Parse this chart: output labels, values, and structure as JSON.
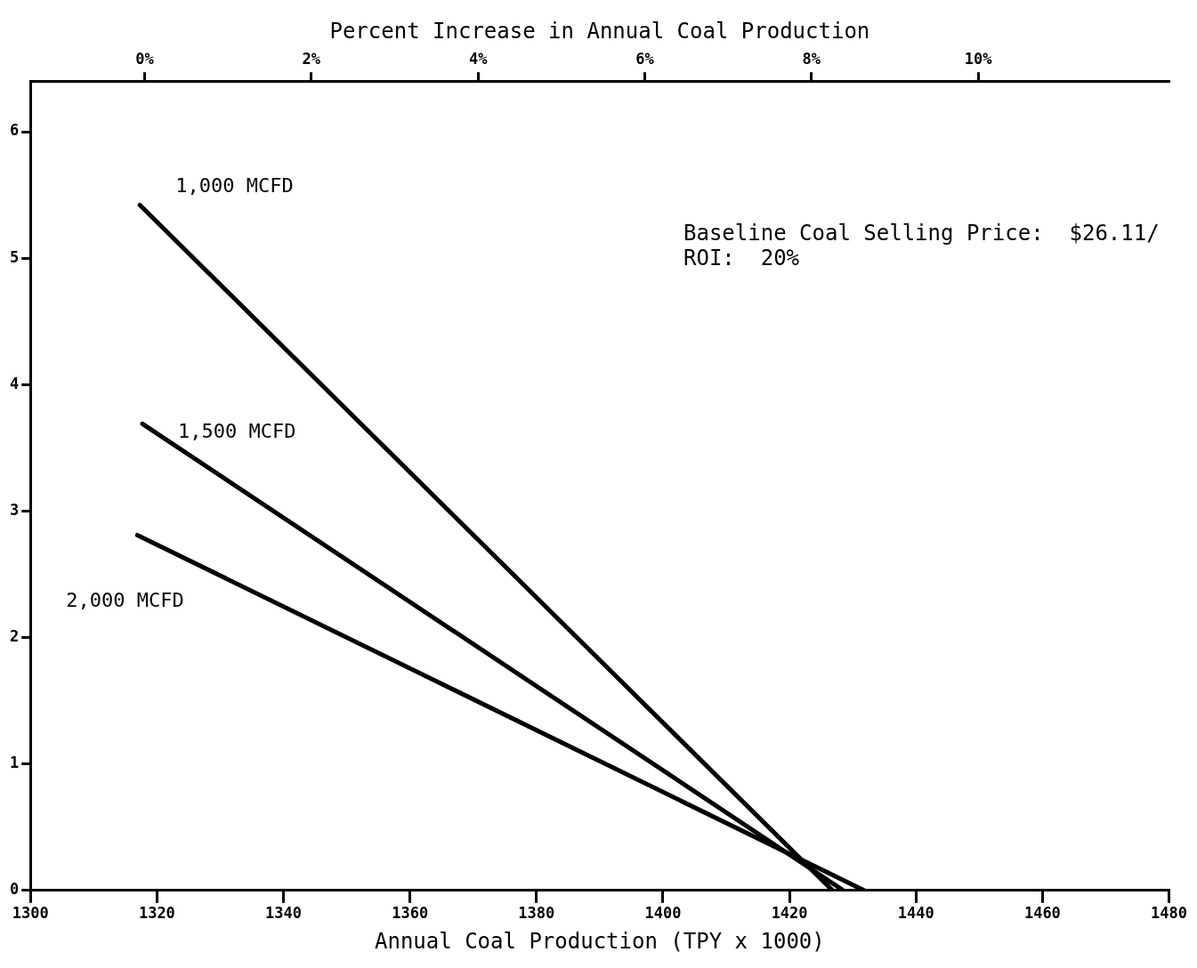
{
  "chart_data": {
    "type": "line",
    "xlabel": "Annual Coal Production (TPY x 1000)",
    "x2label": "Percent Increase in Annual Coal Production",
    "series": [
      {
        "name": "1,000 MCFD",
        "color": "#000000",
        "x": [
          1317.3,
          1426.8
        ],
        "values": [
          5.42,
          0
        ]
      },
      {
        "name": "1,500 MCFD",
        "color": "#000000",
        "x": [
          1317.7,
          1428.5
        ],
        "values": [
          3.69,
          0
        ]
      },
      {
        "name": "2,000 MCFD",
        "color": "#000000",
        "x": [
          1316.9,
          1431.8
        ],
        "values": [
          2.81,
          0
        ]
      }
    ],
    "xlim": [
      1300,
      1480
    ],
    "xticks": [
      1300,
      1320,
      1340,
      1360,
      1380,
      1400,
      1420,
      1440,
      1460,
      1480
    ],
    "x2lim": [
      -1.37,
      12.29
    ],
    "x2ticks": [
      {
        "value": 0,
        "label": "0%"
      },
      {
        "value": 2,
        "label": "2%"
      },
      {
        "value": 4,
        "label": "4%"
      },
      {
        "value": 6,
        "label": "6%"
      },
      {
        "value": 8,
        "label": "8%"
      },
      {
        "value": 10,
        "label": "10%"
      }
    ],
    "ylim": [
      0,
      6.4
    ],
    "yticks": [
      0,
      1,
      2,
      3,
      4,
      5,
      6
    ],
    "annotations": [
      "Baseline Coal Selling Price:  $26.11/",
      "ROI:  20%"
    ],
    "grid": false,
    "legend": false,
    "marker": "none",
    "line_style": "solid"
  }
}
